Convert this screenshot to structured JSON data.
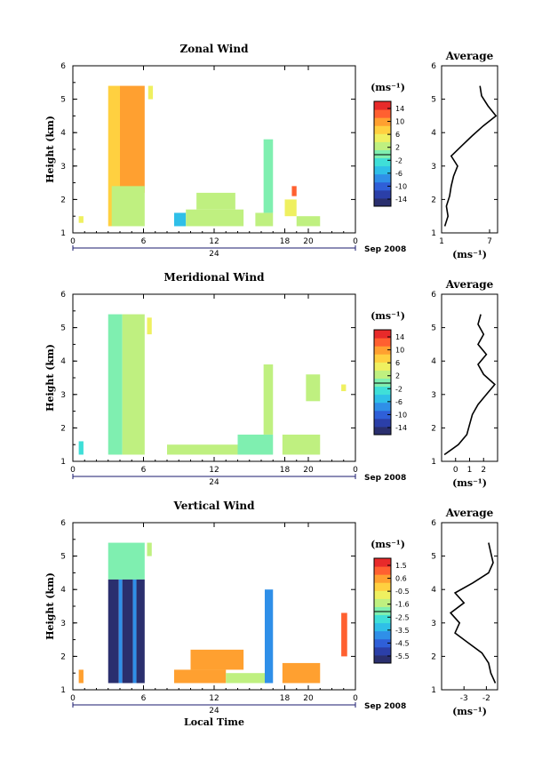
{
  "date_label": "Sep 2008",
  "day_label": "24",
  "local_time_label": "Local Time",
  "unit_label": "(ms⁻¹)",
  "average_title": "Average",
  "ylabel": "Height (km)",
  "colors": {
    "scale": [
      "#2a2f6e",
      "#2b3fa8",
      "#2f5fd8",
      "#2f8fe8",
      "#2fbfe8",
      "#3fdfd8",
      "#7fefb0",
      "#bff080",
      "#eff060",
      "#ffd040",
      "#ffa030",
      "#ff6030",
      "#e82a2a"
    ]
  },
  "chart_data": [
    {
      "type": "heatmap",
      "title": "Zonal Wind",
      "ylabel": "Height (km)",
      "xlabel": "",
      "xlim": [
        0,
        24
      ],
      "ylim": [
        1,
        6
      ],
      "xticks": [
        "0",
        "6",
        "12",
        "18",
        "20",
        "0"
      ],
      "xtick_hours": [
        0,
        6,
        12,
        18,
        20,
        24
      ],
      "yticks": [
        "1",
        "2",
        "3",
        "4",
        "5",
        "6"
      ],
      "colorbar": {
        "unit": "(ms⁻¹)",
        "ticks": [
          "14",
          "10",
          "6",
          "2",
          "-2",
          "-6",
          "-10",
          "-14"
        ],
        "range": [
          -16,
          16
        ]
      },
      "blocks": [
        {
          "t0": 0.5,
          "t1": 0.9,
          "h0": 1.3,
          "h1": 1.5,
          "v": 5
        },
        {
          "t0": 3.0,
          "t1": 4.0,
          "h0": 1.2,
          "h1": 5.4,
          "v": 8
        },
        {
          "t0": 4.0,
          "t1": 6.1,
          "h0": 2.2,
          "h1": 5.4,
          "v": 10
        },
        {
          "t0": 3.3,
          "t1": 6.1,
          "h0": 1.2,
          "h1": 2.4,
          "v": 2
        },
        {
          "t0": 6.4,
          "t1": 6.8,
          "h0": 5.0,
          "h1": 5.4,
          "v": 6
        },
        {
          "t0": 8.6,
          "t1": 9.6,
          "h0": 1.2,
          "h1": 1.6,
          "v": -6
        },
        {
          "t0": 9.6,
          "t1": 14.5,
          "h0": 1.2,
          "h1": 1.7,
          "v": 3
        },
        {
          "t0": 10.5,
          "t1": 13.8,
          "h0": 1.7,
          "h1": 2.2,
          "v": 2
        },
        {
          "t0": 15.5,
          "t1": 17.0,
          "h0": 1.2,
          "h1": 1.6,
          "v": 3
        },
        {
          "t0": 16.2,
          "t1": 17.0,
          "h0": 1.6,
          "h1": 3.8,
          "v": -1
        },
        {
          "t0": 18.0,
          "t1": 19.0,
          "h0": 1.5,
          "h1": 2.0,
          "v": 4
        },
        {
          "t0": 19.0,
          "t1": 21.0,
          "h0": 1.2,
          "h1": 1.5,
          "v": 3
        },
        {
          "t0": 18.6,
          "t1": 19.0,
          "h0": 2.1,
          "h1": 2.4,
          "v": 12
        }
      ],
      "average": {
        "xticks": [
          "1",
          "7"
        ],
        "xlim": [
          1,
          8
        ],
        "heights": [
          1.2,
          1.5,
          1.8,
          2.1,
          2.4,
          2.7,
          3.0,
          3.3,
          3.6,
          3.9,
          4.2,
          4.5,
          4.8,
          5.1,
          5.4
        ],
        "values": [
          1.4,
          1.8,
          1.6,
          2.0,
          2.2,
          2.5,
          3.0,
          2.2,
          3.5,
          4.8,
          6.2,
          7.8,
          6.8,
          6.0,
          5.8
        ]
      }
    },
    {
      "type": "heatmap",
      "title": "Meridional Wind",
      "ylabel": "Height (km)",
      "xlabel": "",
      "xlim": [
        0,
        24
      ],
      "ylim": [
        1,
        6
      ],
      "xticks": [
        "0",
        "6",
        "12",
        "18",
        "20",
        "0"
      ],
      "xtick_hours": [
        0,
        6,
        12,
        18,
        20,
        24
      ],
      "yticks": [
        "1",
        "2",
        "3",
        "4",
        "5",
        "6"
      ],
      "colorbar": {
        "unit": "(ms⁻¹)",
        "ticks": [
          "14",
          "10",
          "6",
          "2",
          "-2",
          "-6",
          "-10",
          "-14"
        ],
        "range": [
          -16,
          16
        ]
      },
      "blocks": [
        {
          "t0": 0.5,
          "t1": 0.9,
          "h0": 1.2,
          "h1": 1.6,
          "v": -3
        },
        {
          "t0": 3.0,
          "t1": 4.2,
          "h0": 1.2,
          "h1": 5.4,
          "v": 1
        },
        {
          "t0": 4.2,
          "t1": 6.1,
          "h0": 1.2,
          "h1": 5.4,
          "v": 3
        },
        {
          "t0": 6.3,
          "t1": 6.7,
          "h0": 4.8,
          "h1": 5.3,
          "v": 4
        },
        {
          "t0": 8.0,
          "t1": 14.0,
          "h0": 1.2,
          "h1": 1.5,
          "v": 2
        },
        {
          "t0": 14.0,
          "t1": 17.0,
          "h0": 1.2,
          "h1": 1.8,
          "v": 1
        },
        {
          "t0": 16.2,
          "t1": 17.0,
          "h0": 1.8,
          "h1": 3.9,
          "v": 3
        },
        {
          "t0": 17.8,
          "t1": 21.0,
          "h0": 1.2,
          "h1": 1.8,
          "v": 2
        },
        {
          "t0": 19.8,
          "t1": 21.0,
          "h0": 2.8,
          "h1": 3.6,
          "v": 3
        },
        {
          "t0": 22.8,
          "t1": 23.2,
          "h0": 3.1,
          "h1": 3.3,
          "v": 4
        }
      ],
      "average": {
        "xticks": [
          "0",
          "1",
          "2"
        ],
        "xlim": [
          -1,
          3
        ],
        "heights": [
          1.2,
          1.5,
          1.8,
          2.1,
          2.4,
          2.7,
          3.0,
          3.3,
          3.6,
          3.9,
          4.2,
          4.5,
          4.8,
          5.1,
          5.4
        ],
        "values": [
          -0.8,
          0.2,
          0.8,
          1.0,
          1.2,
          1.6,
          2.2,
          2.8,
          2.0,
          1.6,
          2.2,
          1.6,
          2.0,
          1.6,
          1.8
        ]
      }
    },
    {
      "type": "heatmap",
      "title": "Vertical Wind",
      "ylabel": "Height (km)",
      "xlabel": "Local Time",
      "xlim": [
        0,
        24
      ],
      "ylim": [
        1,
        6
      ],
      "xticks": [
        "0",
        "6",
        "12",
        "18",
        "20",
        "0"
      ],
      "xtick_hours": [
        0,
        6,
        12,
        18,
        20,
        24
      ],
      "yticks": [
        "1",
        "2",
        "3",
        "4",
        "5",
        "6"
      ],
      "colorbar": {
        "unit": "(ms⁻¹)",
        "ticks": [
          "1.5",
          "0.6",
          "-0.5",
          "-1.6",
          "-2.5",
          "-3.5",
          "-4.5",
          "-5.5"
        ],
        "range": [
          -6,
          2
        ]
      },
      "blocks": [
        {
          "t0": 0.5,
          "t1": 0.9,
          "h0": 1.2,
          "h1": 1.6,
          "v": 0.2
        },
        {
          "t0": 3.0,
          "t1": 6.1,
          "h0": 4.3,
          "h1": 5.4,
          "v": -2.2
        },
        {
          "t0": 3.0,
          "t1": 3.9,
          "h0": 1.2,
          "h1": 4.3,
          "v": -5.6
        },
        {
          "t0": 3.9,
          "t1": 4.2,
          "h0": 1.2,
          "h1": 4.3,
          "v": -3.8
        },
        {
          "t0": 4.2,
          "t1": 5.1,
          "h0": 1.2,
          "h1": 4.3,
          "v": -5.6
        },
        {
          "t0": 5.1,
          "t1": 5.4,
          "h0": 1.2,
          "h1": 4.3,
          "v": -3.8
        },
        {
          "t0": 5.4,
          "t1": 6.1,
          "h0": 1.2,
          "h1": 4.3,
          "v": -5.4
        },
        {
          "t0": 6.3,
          "t1": 6.7,
          "h0": 5.0,
          "h1": 5.4,
          "v": -1.2
        },
        {
          "t0": 8.6,
          "t1": 13.0,
          "h0": 1.2,
          "h1": 1.6,
          "v": 0.5
        },
        {
          "t0": 10.0,
          "t1": 14.5,
          "h0": 1.6,
          "h1": 2.2,
          "v": 0.3
        },
        {
          "t0": 13.0,
          "t1": 16.5,
          "h0": 1.2,
          "h1": 1.5,
          "v": -1.4
        },
        {
          "t0": 16.3,
          "t1": 17.0,
          "h0": 1.2,
          "h1": 4.0,
          "v": -4.0
        },
        {
          "t0": 17.8,
          "t1": 21.0,
          "h0": 1.2,
          "h1": 1.8,
          "v": 0.4
        },
        {
          "t0": 22.8,
          "t1": 23.3,
          "h0": 2.0,
          "h1": 3.3,
          "v": 0.8
        }
      ],
      "average": {
        "xticks": [
          "-3",
          "-2"
        ],
        "xlim": [
          -4,
          -1.5
        ],
        "heights": [
          1.2,
          1.5,
          1.8,
          2.1,
          2.4,
          2.7,
          3.0,
          3.3,
          3.6,
          3.9,
          4.2,
          4.5,
          4.8,
          5.1,
          5.4
        ],
        "values": [
          -1.6,
          -1.8,
          -1.9,
          -2.2,
          -2.8,
          -3.4,
          -3.2,
          -3.6,
          -3.0,
          -3.4,
          -2.6,
          -1.9,
          -1.7,
          -1.8,
          -1.9
        ]
      }
    }
  ]
}
